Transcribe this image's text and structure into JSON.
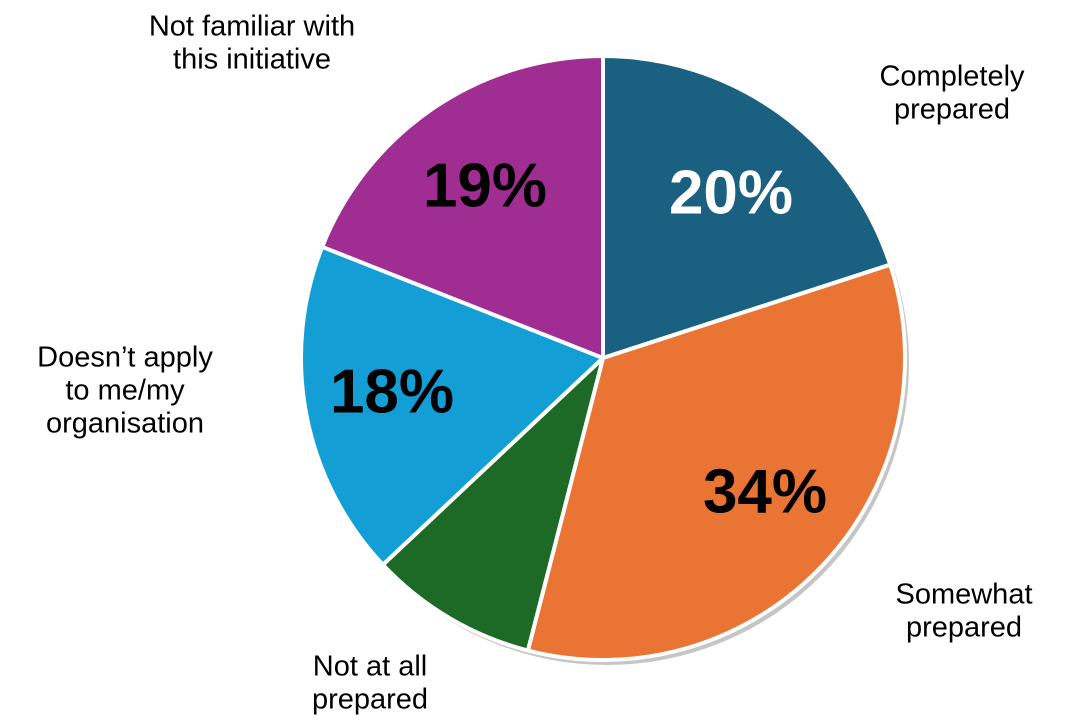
{
  "chart_data": {
    "type": "pie",
    "slices": [
      {
        "label": [
          "Completely",
          "prepared"
        ],
        "value": 20,
        "value_label": "20%",
        "color": "#1a6080",
        "value_color": "#ffffff"
      },
      {
        "label": [
          "Somewhat",
          "prepared"
        ],
        "value": 34,
        "value_label": "34%",
        "color": "#ea7434",
        "value_color": "#000000"
      },
      {
        "label": [
          "Not at all",
          "prepared"
        ],
        "value": 9,
        "value_label": "",
        "color": "#1d6a27",
        "value_color": "#ffffff"
      },
      {
        "label": [
          "Doesn’t apply",
          "to me/my",
          "organisation"
        ],
        "value": 18,
        "value_label": "18%",
        "color": "#139fd6",
        "value_color": "#000000"
      },
      {
        "label": [
          "Not familiar with",
          "this initiative"
        ],
        "value": 19,
        "value_label": "19%",
        "color": "#a02d92",
        "value_color": "#000000"
      }
    ],
    "start_angle_deg": 0,
    "direction": "clockwise",
    "legend": "none"
  }
}
